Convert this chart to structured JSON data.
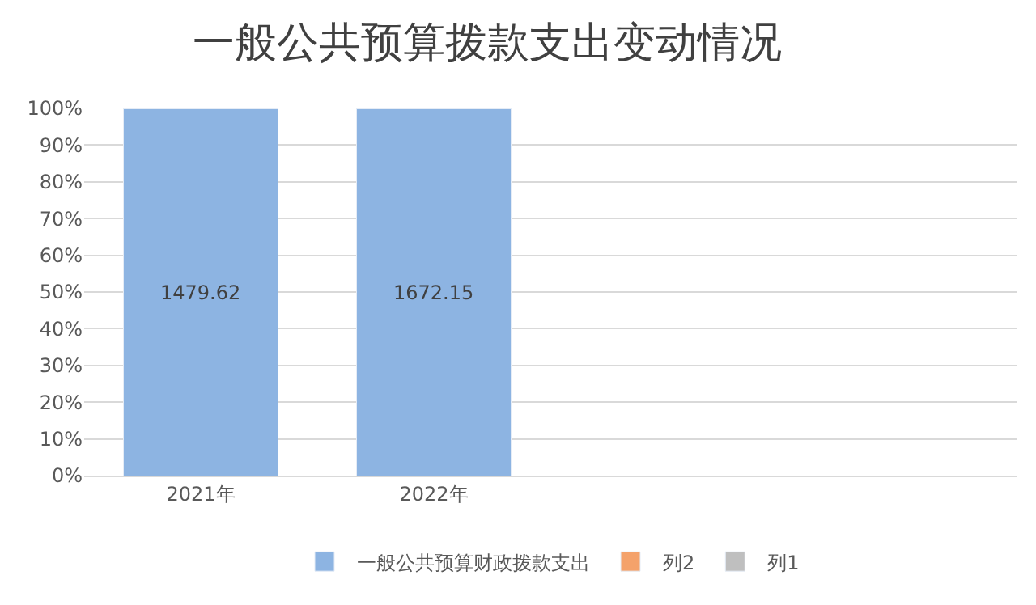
{
  "chart_data": {
    "type": "bar",
    "title": "一般公共预算拨款支出变动情况",
    "categories": [
      "2021年",
      "2022年",
      null,
      null
    ],
    "stacked": true,
    "series": [
      {
        "name": "一般公共预算财政拨款支出",
        "color": "#8db4e2",
        "values": [
          100,
          100,
          null,
          null
        ]
      },
      {
        "name": "列2",
        "color": "#f4a26b",
        "values": [
          null,
          null,
          null,
          null
        ]
      },
      {
        "name": "列1",
        "color": "#bfbfbf",
        "values": [
          null,
          null,
          null,
          null
        ]
      }
    ],
    "annotations": [
      "1479.62",
      "1672.15"
    ],
    "ylim": [
      0,
      100
    ],
    "yticks": [
      {
        "value": 0,
        "label": "0%"
      },
      {
        "value": 10,
        "label": "10%"
      },
      {
        "value": 20,
        "label": "20%"
      },
      {
        "value": 30,
        "label": "30%"
      },
      {
        "value": 40,
        "label": "40%"
      },
      {
        "value": 50,
        "label": "50%"
      },
      {
        "value": 60,
        "label": "60%"
      },
      {
        "value": 70,
        "label": "70%"
      },
      {
        "value": 80,
        "label": "80%"
      },
      {
        "value": 90,
        "label": "90%"
      },
      {
        "value": 100,
        "label": "100%"
      }
    ],
    "grid": "y",
    "legend": "bottom"
  }
}
